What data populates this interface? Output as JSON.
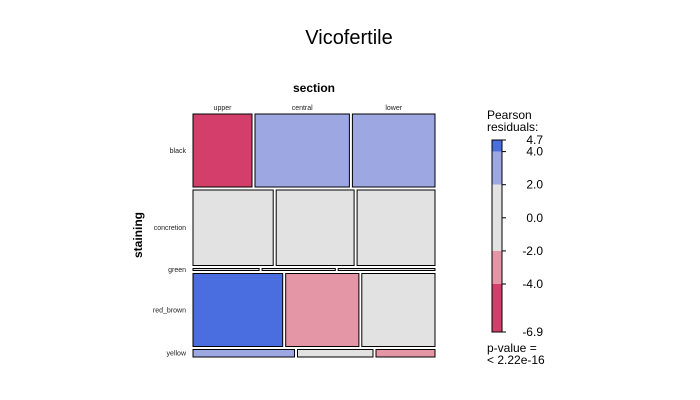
{
  "chart_data": {
    "type": "mosaic",
    "title": "Vicofertile",
    "x_variable": "section",
    "y_variable": "staining",
    "columns": [
      "upper",
      "central",
      "lower"
    ],
    "rows": [
      {
        "label": "black",
        "widths": [
          0.25,
          0.4,
          0.35
        ],
        "height": 0.29,
        "residuals": [
          -4.5,
          3.2,
          3.2
        ]
      },
      {
        "label": "concretion",
        "widths": [
          0.34,
          0.33,
          0.33
        ],
        "height": 0.3,
        "residuals": [
          0.0,
          0.0,
          0.0
        ]
      },
      {
        "label": "green",
        "widths": [
          0.28,
          0.31,
          0.41
        ],
        "height": 0.008,
        "residuals": [
          0.0,
          0.0,
          0.0
        ]
      },
      {
        "label": "red_brown",
        "widths": [
          0.38,
          0.31,
          0.31
        ],
        "height": 0.29,
        "residuals": [
          4.7,
          -3.0,
          0.0
        ]
      },
      {
        "label": "yellow",
        "widths": [
          0.43,
          0.32,
          0.25
        ],
        "height": 0.03,
        "residuals": [
          2.5,
          0.0,
          -2.5
        ]
      }
    ],
    "legend": {
      "title_line1": "Pearson",
      "title_line2": "residuals:",
      "max": 4.7,
      "min": -6.9,
      "ticks": [
        "4.7",
        "4.0",
        "2.0",
        "0.0",
        "-2.0",
        "-4.0",
        "-6.9"
      ],
      "tick_values": [
        4.7,
        4.0,
        2.0,
        0.0,
        -2.0,
        -4.0,
        -6.9
      ],
      "bands": [
        {
          "from": 4.0,
          "to": 4.7,
          "color": "#4a6ee0"
        },
        {
          "from": 2.0,
          "to": 4.0,
          "color": "#9da8e2"
        },
        {
          "from": -2.0,
          "to": 2.0,
          "color": "#e2e2e2"
        },
        {
          "from": -4.0,
          "to": -2.0,
          "color": "#e496a6"
        },
        {
          "from": -6.9,
          "to": -4.0,
          "color": "#d33f6a"
        }
      ],
      "pvalue_line1": "p-value =",
      "pvalue_line2": "< 2.22e-16"
    }
  }
}
